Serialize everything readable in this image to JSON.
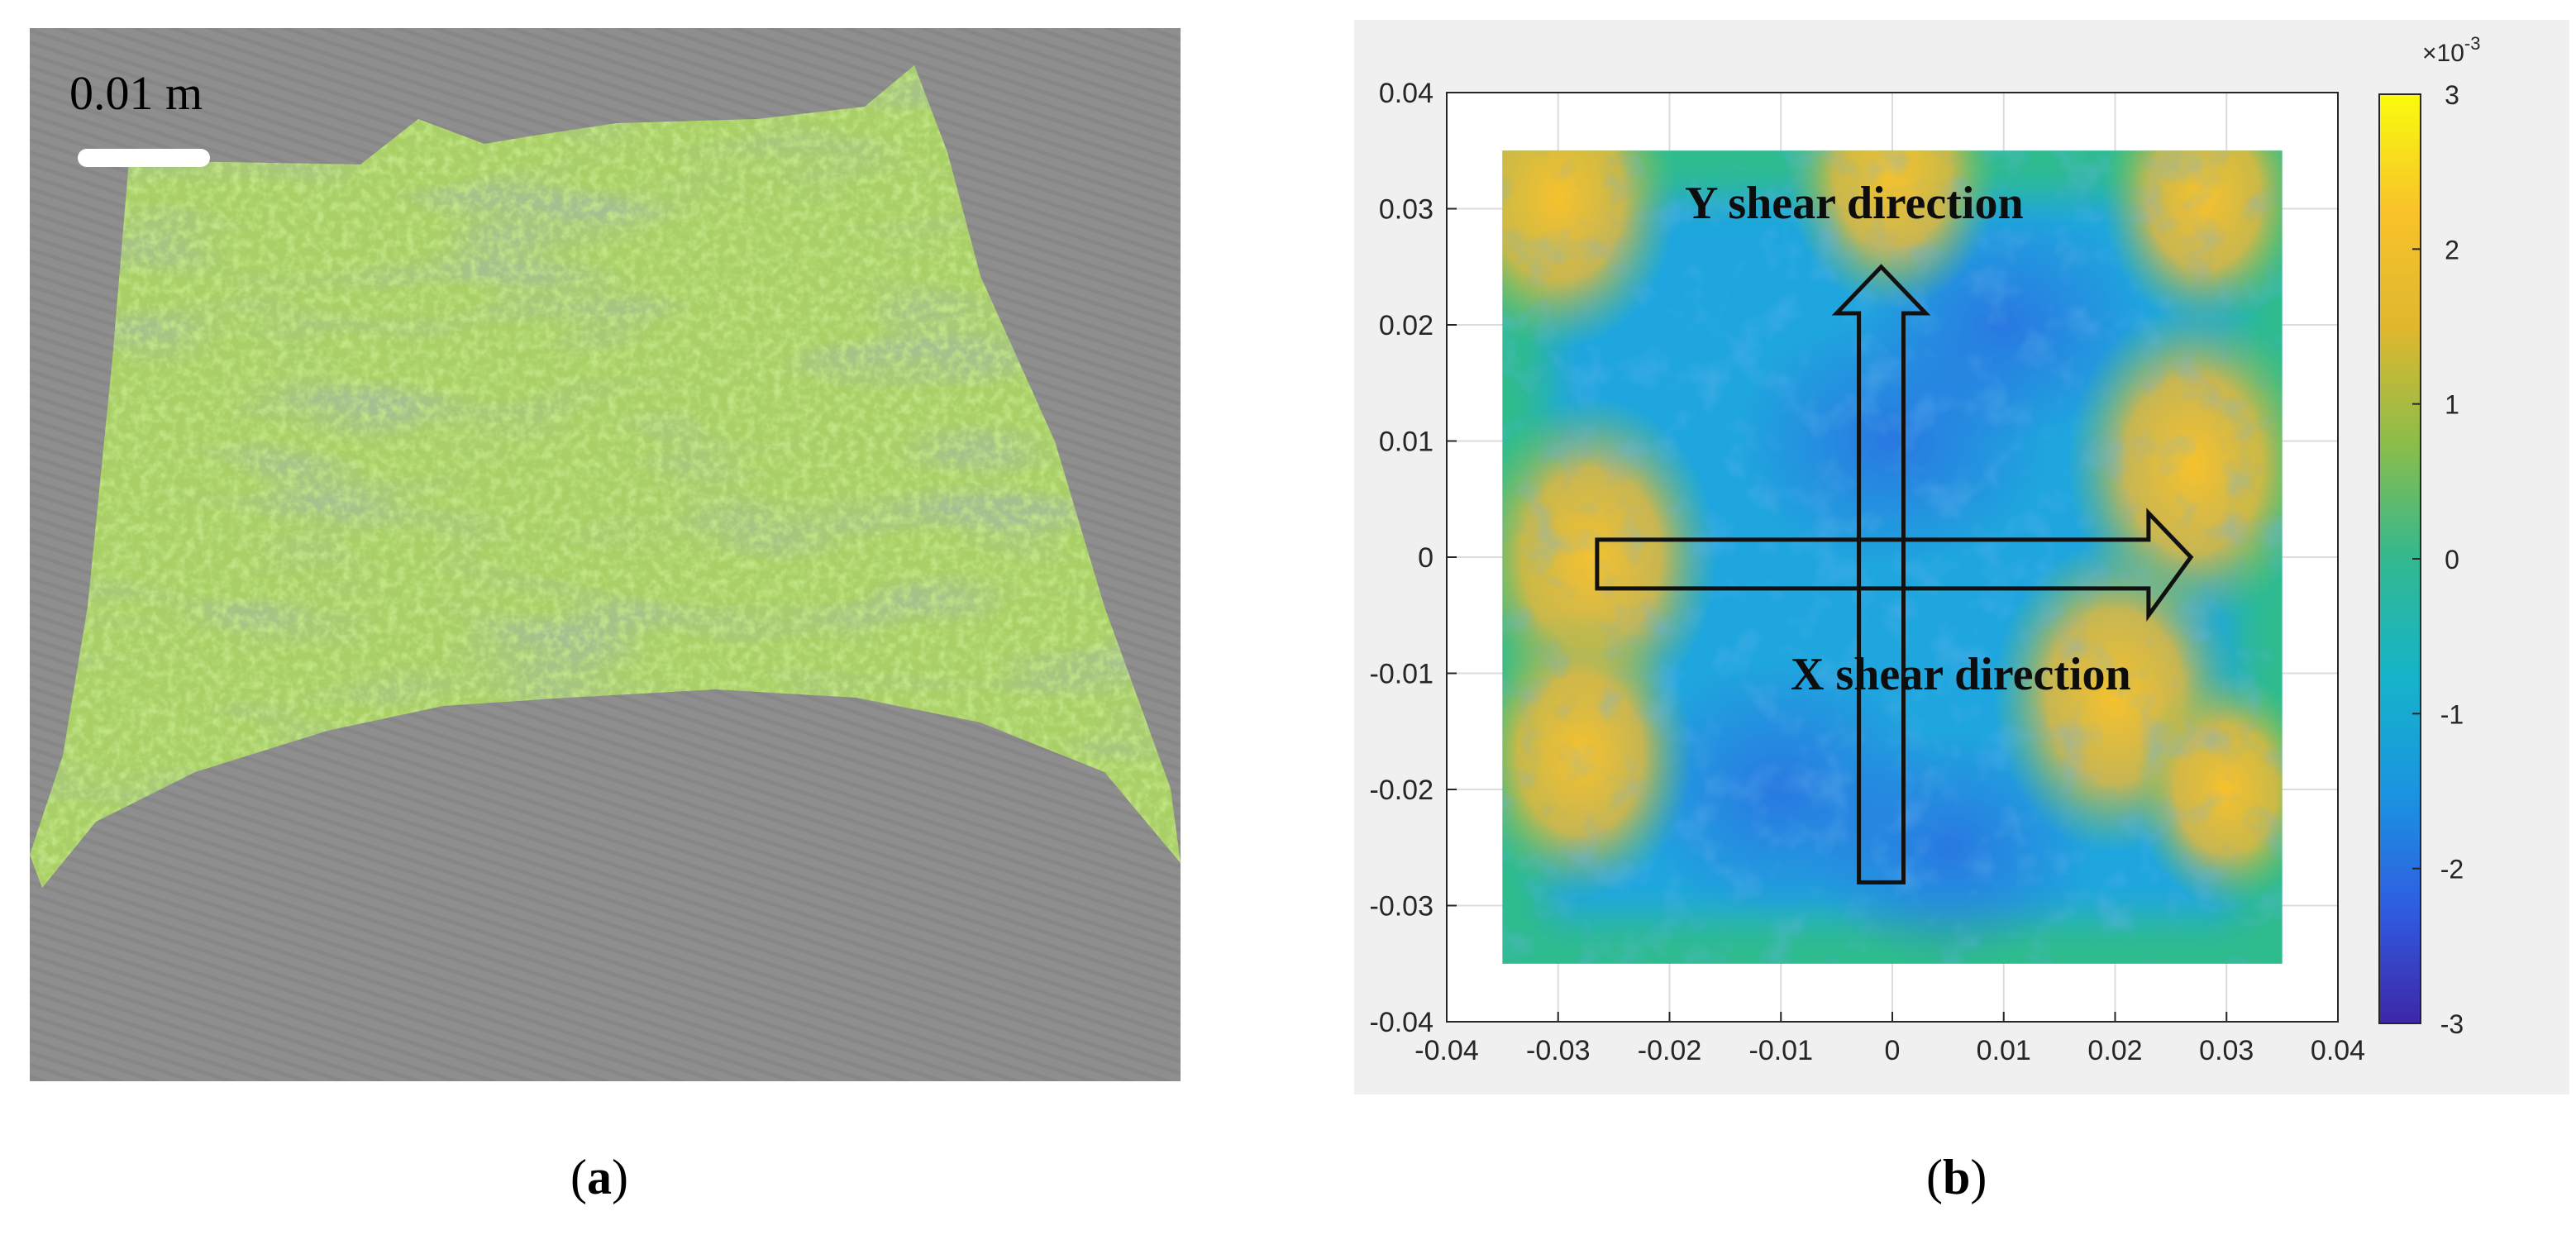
{
  "panel_a": {
    "scale_label": "0.01 m",
    "caption_letter": "a"
  },
  "panel_b": {
    "caption_letter": "b",
    "y_arrow_label": "Y shear direction",
    "x_arrow_label": "X shear direction",
    "colorbar_multiplier": "×10",
    "colorbar_exponent": "-3"
  },
  "chart_data": {
    "type": "heatmap",
    "xlim": [
      -0.04,
      0.04
    ],
    "ylim": [
      -0.04,
      0.04
    ],
    "x_ticks": [
      "-0.04",
      "-0.03",
      "-0.02",
      "-0.01",
      "0",
      "0.01",
      "0.02",
      "0.03",
      "0.04"
    ],
    "y_ticks": [
      "0.04",
      "0.03",
      "0.02",
      "0.01",
      "0",
      "-0.01",
      "-0.02",
      "-0.03",
      "-0.04"
    ],
    "data_extent": {
      "x": [
        -0.035,
        0.035
      ],
      "y": [
        -0.035,
        0.035
      ]
    },
    "grid": true,
    "colorbar": {
      "range": [
        -3,
        3
      ],
      "ticks": [
        "3",
        "2",
        "1",
        "0",
        "-1",
        "-2",
        "-3"
      ],
      "colors": [
        "#3e26a8",
        "#2f5de1",
        "#1a95e0",
        "#16b4c9",
        "#33b890",
        "#8cbd49",
        "#e0b72f",
        "#f8c32a",
        "#f9fb0e"
      ]
    },
    "high_regions": [
      {
        "x": -0.03,
        "y": 0.031,
        "level": 2.0
      },
      {
        "x": 0.0,
        "y": 0.033,
        "level": 1.6
      },
      {
        "x": 0.028,
        "y": 0.031,
        "level": 1.5
      },
      {
        "x": -0.027,
        "y": 0.0,
        "level": 2.2
      },
      {
        "x": -0.028,
        "y": -0.017,
        "level": 1.8
      },
      {
        "x": 0.027,
        "y": 0.008,
        "level": 2.2
      },
      {
        "x": 0.02,
        "y": -0.012,
        "level": 2.1
      },
      {
        "x": 0.03,
        "y": -0.02,
        "level": 1.2
      }
    ],
    "low_regions": [
      {
        "x": 0.0,
        "y": 0.01,
        "level": -1.5
      },
      {
        "x": -0.01,
        "y": -0.02,
        "level": -1.6
      },
      {
        "x": 0.005,
        "y": -0.025,
        "level": -1.2
      },
      {
        "x": 0.01,
        "y": 0.02,
        "level": -1.3
      }
    ]
  }
}
